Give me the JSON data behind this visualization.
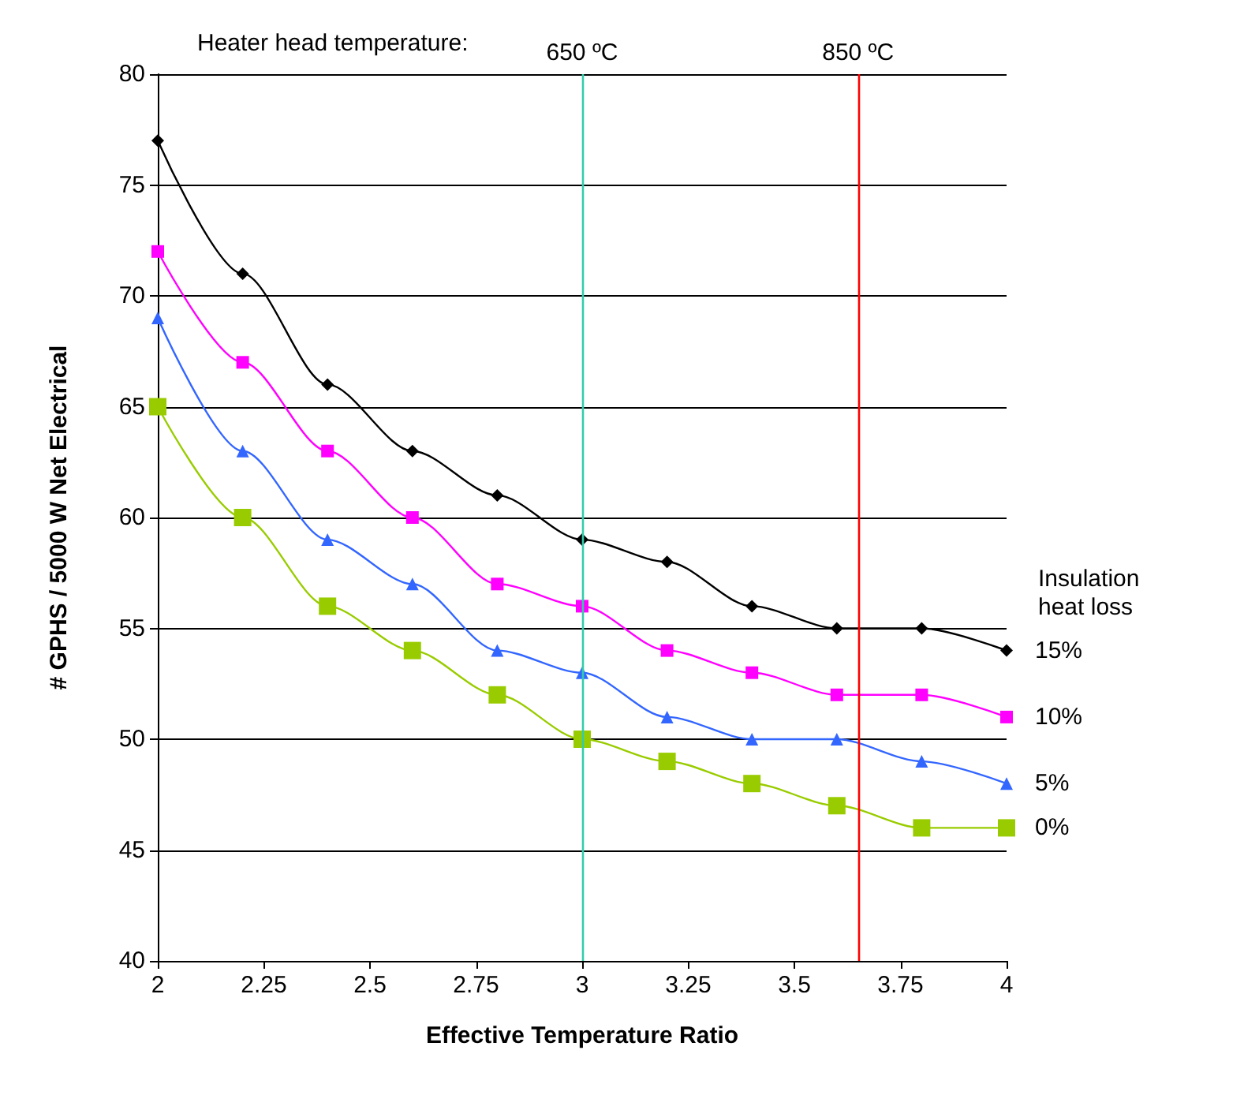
{
  "chart_data": {
    "type": "line",
    "xlabel": "Effective Temperature Ratio",
    "ylabel": "# GPHS / 5000 W Net Electrical",
    "legend_title": "Insulation heat loss",
    "annotations": [
      "Heater head temperature:"
    ],
    "x": [
      2,
      2.2,
      2.4,
      2.6,
      2.8,
      3,
      3.2,
      3.4,
      3.6,
      3.8,
      4
    ],
    "xlim": [
      2,
      4
    ],
    "xticks": [
      2,
      2.25,
      2.5,
      2.75,
      3,
      3.25,
      3.5,
      3.75,
      4
    ],
    "ylim": [
      40,
      80
    ],
    "yticks": [
      40,
      45,
      50,
      55,
      60,
      65,
      70,
      75,
      80
    ],
    "grid": "y",
    "legend": "right",
    "series": [
      {
        "name": "15%",
        "color": "#000000",
        "marker": "diamond",
        "values": [
          77,
          71,
          66,
          63,
          61,
          59,
          58,
          56,
          55,
          55,
          54
        ]
      },
      {
        "name": "10%",
        "color": "#ff00ff",
        "marker": "square",
        "values": [
          72,
          67,
          63,
          60,
          57,
          56,
          54,
          53,
          52,
          52,
          51
        ]
      },
      {
        "name": "5%",
        "color": "#3366ff",
        "marker": "triangle",
        "values": [
          69,
          63,
          59,
          57,
          54,
          53,
          51,
          50,
          50,
          49,
          48
        ]
      },
      {
        "name": "0%",
        "color": "#99cc00",
        "marker": "square",
        "values": [
          65,
          60,
          56,
          54,
          52,
          50,
          49,
          48,
          47,
          46,
          46
        ]
      }
    ],
    "ref_lines": [
      {
        "axis": "x",
        "value": 3,
        "label": "650 ºC",
        "color": "#33ccaa"
      },
      {
        "axis": "x",
        "value": 3.65,
        "label": "850 ºC",
        "color": "#ff0000"
      }
    ]
  }
}
